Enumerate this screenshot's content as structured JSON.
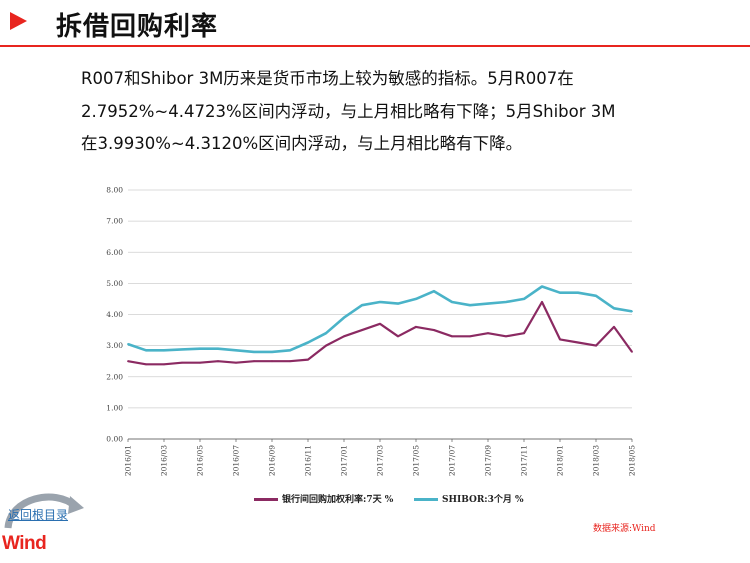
{
  "page": {
    "title": "拆借回购利率",
    "paragraph_lines": [
      "R007和Shibor 3M历来是货币市场上较为敏感的指标。5月R007在",
      "2.7952%~4.4723%区间内浮动，与上月相比略有下降；5月Shibor 3M",
      "在3.9930%~4.3120%区间内浮动，与上月相比略有下降。"
    ],
    "source": "数据来源:Wind",
    "back_link": "返回根目录",
    "logo_text": "Wind",
    "colors": {
      "accent": "#e8251f",
      "series_r007": "#8b2a62",
      "series_shibor": "#4ab3c8"
    }
  },
  "chart_data": {
    "type": "line",
    "title": "",
    "xlabel": "",
    "ylabel": "",
    "ylim": [
      0,
      8
    ],
    "yticks": [
      "0.00",
      "1.00",
      "2.00",
      "3.00",
      "4.00",
      "5.00",
      "6.00",
      "7.00",
      "8.00"
    ],
    "xticks": [
      "2016/01",
      "2016/03",
      "2016/05",
      "2016/07",
      "2016/09",
      "2016/11",
      "2017/01",
      "2017/03",
      "2017/05",
      "2017/07",
      "2017/09",
      "2017/11",
      "2018/01",
      "2018/03",
      "2018/05"
    ],
    "grid": true,
    "legend_position": "bottom",
    "x": [
      "2016/01",
      "2016/02",
      "2016/03",
      "2016/04",
      "2016/05",
      "2016/06",
      "2016/07",
      "2016/08",
      "2016/09",
      "2016/10",
      "2016/11",
      "2016/12",
      "2017/01",
      "2017/02",
      "2017/03",
      "2017/04",
      "2017/05",
      "2017/06",
      "2017/07",
      "2017/08",
      "2017/09",
      "2017/10",
      "2017/11",
      "2017/12",
      "2018/01",
      "2018/02",
      "2018/03",
      "2018/04",
      "2018/05"
    ],
    "series": [
      {
        "name": "银行间回购加权利率:7天 %",
        "values": [
          2.5,
          2.4,
          2.4,
          2.45,
          2.45,
          2.5,
          2.45,
          2.5,
          2.5,
          2.5,
          2.55,
          3.0,
          3.3,
          3.5,
          3.7,
          3.3,
          3.6,
          3.5,
          3.3,
          3.3,
          3.4,
          3.3,
          3.4,
          4.4,
          3.2,
          3.1,
          3.0,
          3.6,
          2.8
        ]
      },
      {
        "name": "SHIBOR:3个月 %",
        "values": [
          3.05,
          2.85,
          2.85,
          2.88,
          2.9,
          2.9,
          2.85,
          2.8,
          2.8,
          2.85,
          3.1,
          3.4,
          3.9,
          4.3,
          4.4,
          4.35,
          4.5,
          4.75,
          4.4,
          4.3,
          4.35,
          4.4,
          4.5,
          4.9,
          4.7,
          4.7,
          4.6,
          4.2,
          4.1
        ]
      }
    ]
  }
}
